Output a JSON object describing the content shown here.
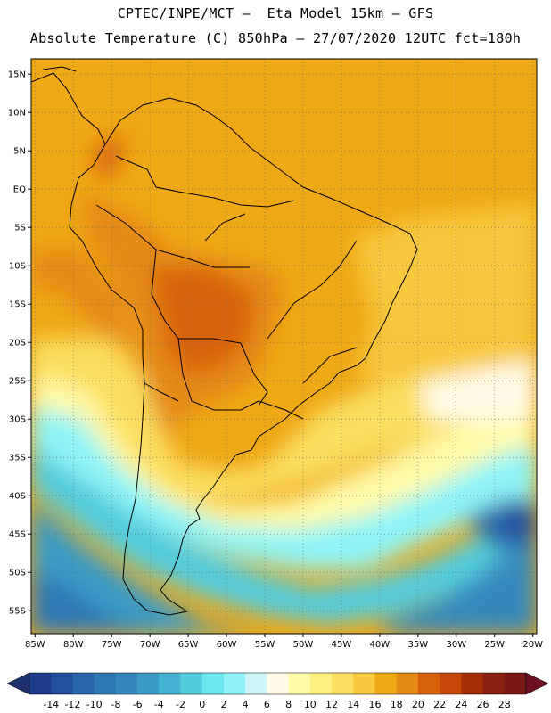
{
  "header": {
    "line1": "CPTEC/INPE/MCT –  Eta Model 15km – GFS",
    "line2": "Absolute Temperature (C) 850hPa – 27/07/2020 12UTC fct=180h"
  },
  "map": {
    "lon_range": [
      -85.5,
      -19.5
    ],
    "lat_range": [
      -58.0,
      17.0
    ],
    "lat_ticks": [
      {
        "value": 15,
        "label": "15N"
      },
      {
        "value": 10,
        "label": "10N"
      },
      {
        "value": 5,
        "label": "5N"
      },
      {
        "value": 0,
        "label": "EQ"
      },
      {
        "value": -5,
        "label": "5S"
      },
      {
        "value": -10,
        "label": "10S"
      },
      {
        "value": -15,
        "label": "15S"
      },
      {
        "value": -20,
        "label": "20S"
      },
      {
        "value": -25,
        "label": "25S"
      },
      {
        "value": -30,
        "label": "30S"
      },
      {
        "value": -35,
        "label": "35S"
      },
      {
        "value": -40,
        "label": "40S"
      },
      {
        "value": -45,
        "label": "45S"
      },
      {
        "value": -50,
        "label": "50S"
      },
      {
        "value": -55,
        "label": "55S"
      }
    ],
    "lon_ticks": [
      {
        "value": -85,
        "label": "85W"
      },
      {
        "value": -80,
        "label": "80W"
      },
      {
        "value": -75,
        "label": "75W"
      },
      {
        "value": -70,
        "label": "70W"
      },
      {
        "value": -65,
        "label": "65W"
      },
      {
        "value": -60,
        "label": "60W"
      },
      {
        "value": -55,
        "label": "55W"
      },
      {
        "value": -50,
        "label": "50W"
      },
      {
        "value": -45,
        "label": "45W"
      },
      {
        "value": -40,
        "label": "40W"
      },
      {
        "value": -35,
        "label": "35W"
      },
      {
        "value": -30,
        "label": "30W"
      },
      {
        "value": -25,
        "label": "25W"
      },
      {
        "value": -20,
        "label": "20W"
      }
    ]
  },
  "colorbar": {
    "labels": [
      "-14",
      "-12",
      "-10",
      "-8",
      "-6",
      "-4",
      "-2",
      "0",
      "2",
      "4",
      "6",
      "8",
      "10",
      "12",
      "14",
      "16",
      "18",
      "20",
      "22",
      "24",
      "26",
      "28"
    ],
    "colors": [
      "#1f3c8c",
      "#23509e",
      "#2966aa",
      "#2e78b5",
      "#3488bc",
      "#3a9bc6",
      "#44b3d2",
      "#52ccdd",
      "#6ae6ee",
      "#8ff4f7",
      "#cdf6fb",
      "#fffbe6",
      "#fffaa8",
      "#fff080",
      "#fbdf60",
      "#f7c83c",
      "#efa816",
      "#e58a14",
      "#d8620c",
      "#c8480a",
      "#a83008",
      "#8a2010",
      "#7a1818"
    ],
    "under_color": "#1f3070",
    "over_color": "#6e1020"
  }
}
